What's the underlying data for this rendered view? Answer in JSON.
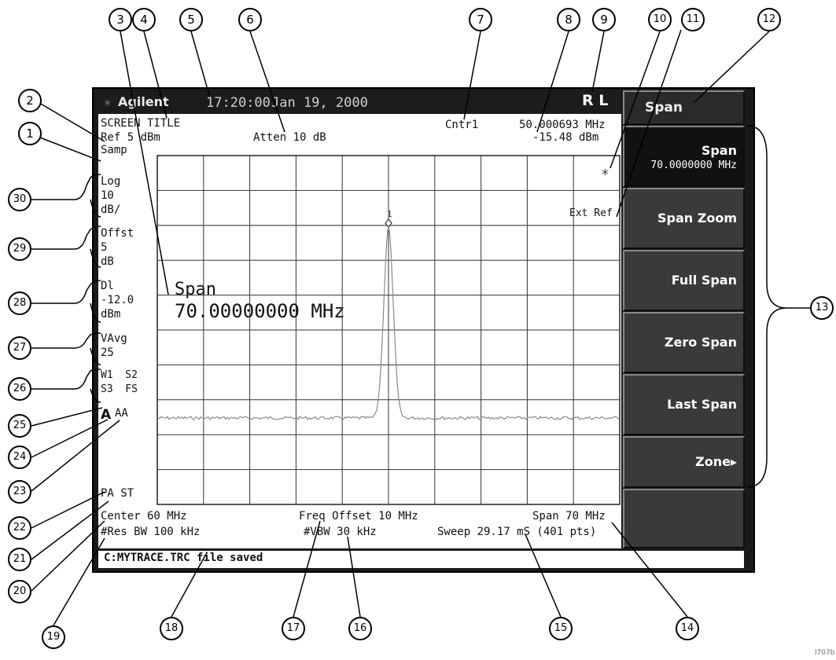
{
  "top_bar": {
    "logo_text": "Agilent",
    "time": "17:20:00",
    "date": "Jan 19, 2000",
    "remote_status": "R L"
  },
  "annotations": {
    "screen_title": "SCREEN TITLE",
    "ref_level": "Ref 5 dBm",
    "attenuation": "Atten 10 dB",
    "marker_label": "Cntr1",
    "marker_frequency": "50.000693 MHz",
    "marker_amplitude": "-15.48 dBm",
    "measuring_indicator": "*",
    "ext_ref": "Ext Ref",
    "detector": "Samp",
    "scale_lines": [
      "Log",
      "10",
      "dB/"
    ],
    "offset_lines": [
      "Offst",
      "5",
      "dB"
    ],
    "display_line_lines": [
      "Dl",
      "-12.0",
      "dBm"
    ],
    "video_avg_lines": [
      "VAvg",
      "25"
    ],
    "trace_mode_lines": [
      "W1  S2",
      "S3  FS"
    ],
    "trigger_letter": "A",
    "trace_detector": "AA",
    "pa_st": "PA ST",
    "active_function_label": "Span",
    "active_function_value": "70.00000000 MHz",
    "marker_number": "1",
    "center_freq": "Center 60 MHz",
    "freq_offset": "Freq Offset 10 MHz",
    "span": "Span 70 MHz",
    "res_bw": "#Res BW 100 kHz",
    "vbw": "#VBW 30 kHz",
    "sweep": "Sweep 29.17 mS (401 pts)",
    "status_message": "C:MYTRACE.TRC file saved"
  },
  "softkeys": {
    "title": "Span",
    "keys": [
      {
        "label": "Span",
        "value": "70.0000000 MHz"
      },
      {
        "label": "Span Zoom"
      },
      {
        "label": "Full Span"
      },
      {
        "label": "Zero Span"
      },
      {
        "label": "Last Span"
      },
      {
        "label": "Zone▸"
      },
      {
        "label": ""
      }
    ]
  },
  "callouts": [
    "1",
    "2",
    "3",
    "4",
    "5",
    "6",
    "7",
    "8",
    "9",
    "10",
    "11",
    "12",
    "13",
    "14",
    "15",
    "16",
    "17",
    "18",
    "19",
    "20",
    "21",
    "22",
    "23",
    "24",
    "25",
    "26",
    "27",
    "28",
    "29",
    "30"
  ],
  "figure_id": "l707b"
}
